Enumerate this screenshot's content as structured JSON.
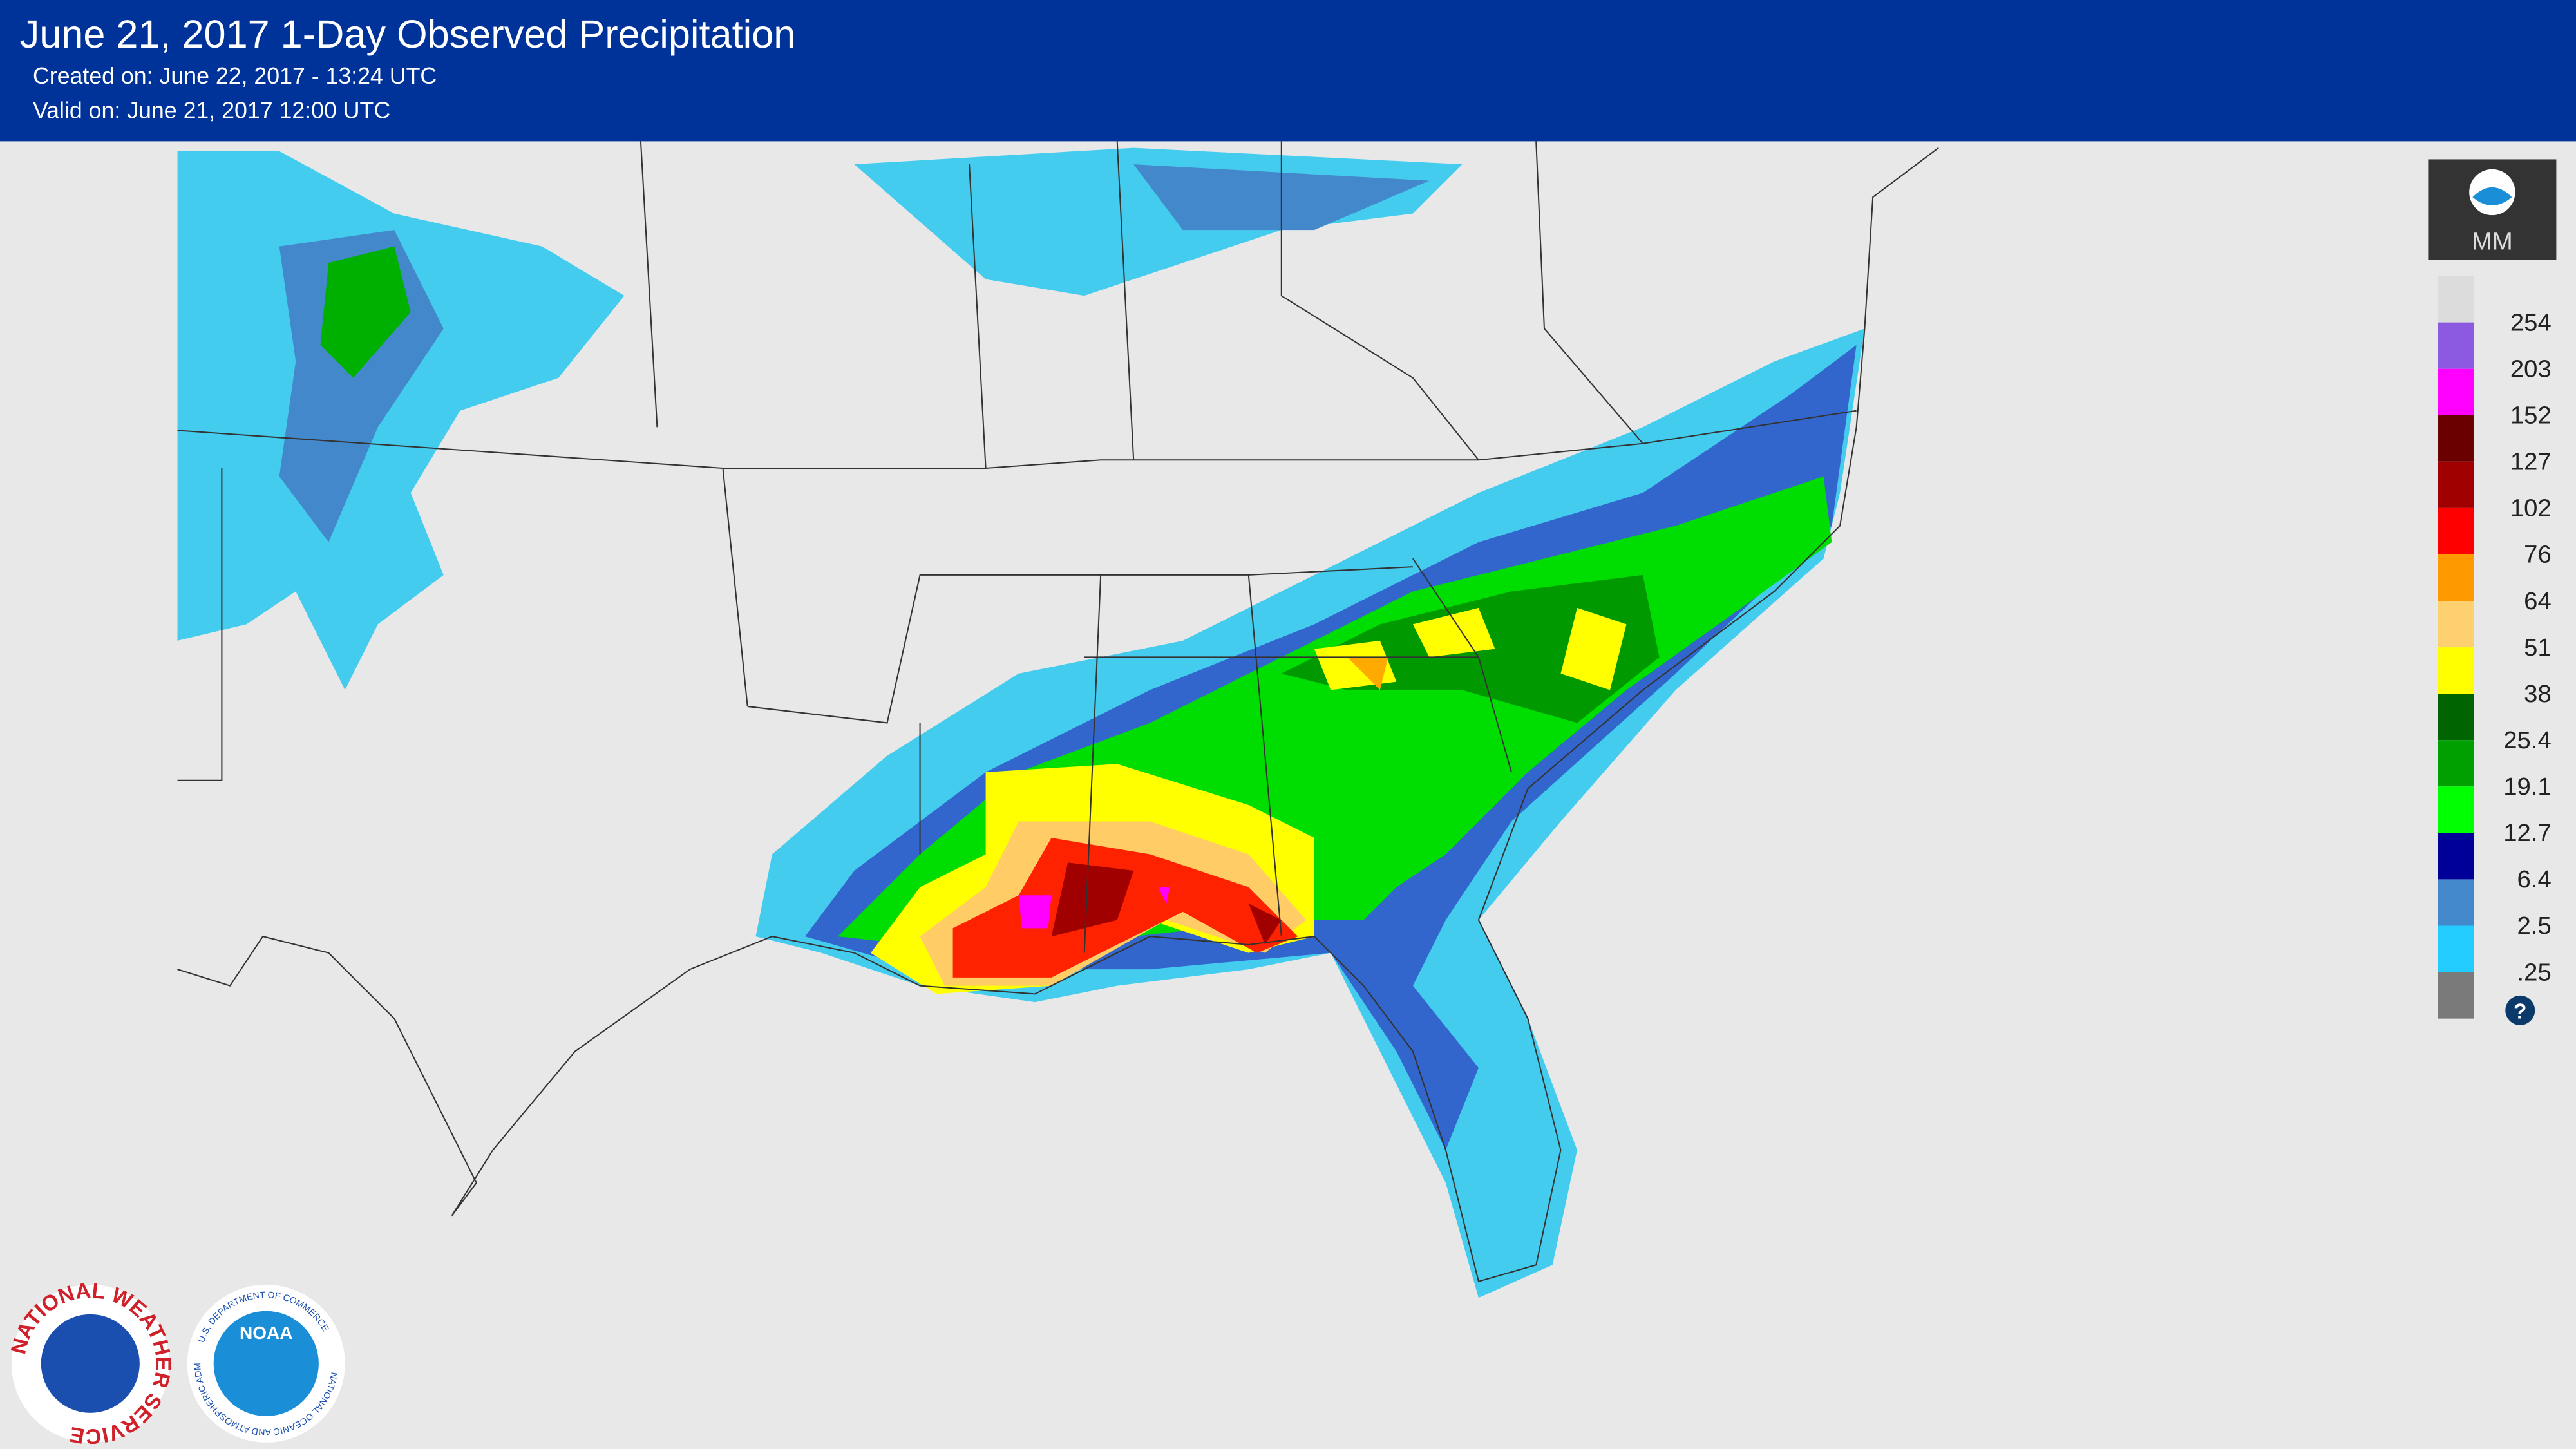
{
  "header": {
    "title": "June 21, 2017 1-Day Observed Precipitation",
    "created": "Created on: June 22, 2017 - 13:24 UTC",
    "valid": "Valid on: June 21, 2017 12:00 UTC"
  },
  "legend": {
    "unit": "MM",
    "help": "?",
    "top_color": "#dcdcdc",
    "items": [
      {
        "label": "254",
        "color": "#8c5ae0"
      },
      {
        "label": "203",
        "color": "#ff00ff"
      },
      {
        "label": "152",
        "color": "#6b0000"
      },
      {
        "label": "127",
        "color": "#a00000"
      },
      {
        "label": "102",
        "color": "#ff0000"
      },
      {
        "label": "76",
        "color": "#ff9900"
      },
      {
        "label": "64",
        "color": "#ffd070"
      },
      {
        "label": "51",
        "color": "#ffff00"
      },
      {
        "label": "38",
        "color": "#006400"
      },
      {
        "label": "25.4",
        "color": "#00a000"
      },
      {
        "label": "19.1",
        "color": "#00ff00"
      },
      {
        "label": "12.7",
        "color": "#000099"
      },
      {
        "label": "6.4",
        "color": "#4488cc"
      },
      {
        "label": "2.5",
        "color": "#22ccff"
      },
      {
        "label": ".25",
        "color": "#7a7a7a"
      }
    ]
  },
  "logos": {
    "nws": "NATIONAL WEATHER SERVICE",
    "noaa": "NOAA",
    "noaa_ring": "NATIONAL OCEANIC AND ATMOSPHERIC ADMINISTRATION",
    "noaa_dept": "U.S. DEPARTMENT OF COMMERCE"
  }
}
